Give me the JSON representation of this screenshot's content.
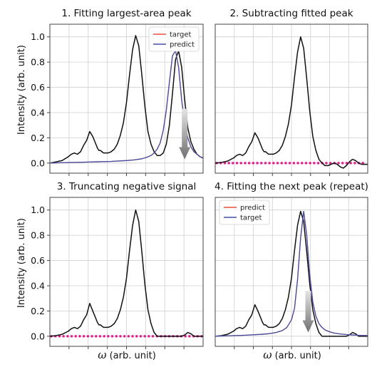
{
  "ylabel": "Intensity (arb. unit)",
  "xlabel_symbol": "ω",
  "xlabel_rest": " (arb. unit)",
  "colors": {
    "black_curve": "#111111",
    "red_line": "#e8503a",
    "blue_line": "#4050a8",
    "zero_dots": "#e0208a",
    "arrow_top": "#d9d9d9",
    "arrow_bottom": "#7a7a7a"
  },
  "chart_data": [
    {
      "type": "line",
      "title": "1. Fitting largest-area peak",
      "xlim": [
        0,
        100
      ],
      "ylim": [
        -0.08,
        1.1
      ],
      "yticks": [
        "0.0",
        "0.2",
        "0.4",
        "0.6",
        "0.8",
        "1.0"
      ],
      "xlabel": "",
      "ylabel": "Intensity (arb. unit)",
      "grid": true,
      "legend": {
        "position": "top-right",
        "entries": [
          "target",
          "predict"
        ]
      },
      "series": [
        {
          "name": "",
          "style": "black",
          "x": [
            0,
            4,
            8,
            12,
            14,
            16,
            18,
            20,
            22,
            24,
            26,
            28,
            30,
            31,
            32,
            33,
            34,
            35,
            36,
            38,
            40,
            42,
            44,
            46,
            48,
            50,
            52,
            54,
            56,
            58,
            60,
            62,
            64,
            66,
            68,
            70,
            72,
            74,
            76,
            78,
            80,
            82,
            84,
            86,
            88,
            90,
            92,
            94,
            96,
            98,
            100
          ],
          "y": [
            0.0,
            0.01,
            0.02,
            0.05,
            0.07,
            0.08,
            0.07,
            0.09,
            0.14,
            0.18,
            0.25,
            0.21,
            0.15,
            0.12,
            0.1,
            0.1,
            0.09,
            0.08,
            0.08,
            0.08,
            0.09,
            0.11,
            0.15,
            0.22,
            0.32,
            0.48,
            0.7,
            0.9,
            1.01,
            0.93,
            0.7,
            0.45,
            0.25,
            0.15,
            0.09,
            0.06,
            0.06,
            0.08,
            0.15,
            0.3,
            0.55,
            0.82,
            0.89,
            0.76,
            0.5,
            0.28,
            0.17,
            0.11,
            0.07,
            0.05,
            0.04
          ]
        },
        {
          "name": "target",
          "style": "red",
          "x": [
            0,
            10,
            20,
            30,
            40,
            50,
            55,
            60,
            63,
            66,
            68,
            70,
            72,
            74,
            76,
            78,
            80,
            82,
            84,
            86,
            88,
            90,
            92,
            94,
            96,
            98,
            100
          ],
          "y": [
            0.0,
            0.004,
            0.006,
            0.01,
            0.013,
            0.02,
            0.025,
            0.034,
            0.045,
            0.06,
            0.08,
            0.11,
            0.16,
            0.26,
            0.42,
            0.64,
            0.85,
            0.89,
            0.76,
            0.5,
            0.31,
            0.2,
            0.13,
            0.09,
            0.07,
            0.05,
            0.04
          ]
        },
        {
          "name": "predict",
          "style": "blue",
          "x": [
            0,
            10,
            20,
            30,
            40,
            50,
            55,
            60,
            63,
            66,
            68,
            70,
            72,
            74,
            76,
            78,
            80,
            82,
            84,
            86,
            88,
            90,
            92,
            94,
            96,
            98,
            100
          ],
          "y": [
            0.0,
            0.004,
            0.006,
            0.01,
            0.013,
            0.02,
            0.025,
            0.034,
            0.045,
            0.06,
            0.08,
            0.11,
            0.16,
            0.26,
            0.42,
            0.64,
            0.85,
            0.89,
            0.76,
            0.5,
            0.31,
            0.2,
            0.13,
            0.09,
            0.07,
            0.05,
            0.04
          ]
        }
      ],
      "arrow": {
        "x": 88,
        "y_from": 0.43,
        "y_to": 0.03
      },
      "zero_dotted": false
    },
    {
      "type": "line",
      "title": "2. Subtracting fitted peak",
      "xlim": [
        0,
        100
      ],
      "ylim": [
        -0.08,
        1.1
      ],
      "yticks": [],
      "xlabel": "",
      "ylabel": "",
      "grid": true,
      "legend": null,
      "series": [
        {
          "name": "",
          "style": "black",
          "x": [
            0,
            4,
            8,
            12,
            14,
            16,
            18,
            20,
            22,
            24,
            26,
            28,
            30,
            31,
            32,
            33,
            34,
            35,
            36,
            38,
            40,
            42,
            44,
            46,
            48,
            50,
            52,
            54,
            56,
            58,
            60,
            62,
            64,
            66,
            68,
            70,
            72,
            74,
            76,
            78,
            80,
            82,
            84,
            86,
            88,
            90,
            92,
            94,
            96,
            98,
            100
          ],
          "y": [
            0.0,
            0.005,
            0.015,
            0.04,
            0.06,
            0.07,
            0.06,
            0.08,
            0.13,
            0.17,
            0.24,
            0.2,
            0.14,
            0.11,
            0.09,
            0.09,
            0.08,
            0.07,
            0.07,
            0.07,
            0.08,
            0.1,
            0.14,
            0.21,
            0.31,
            0.46,
            0.68,
            0.88,
            1.0,
            0.91,
            0.67,
            0.41,
            0.21,
            0.1,
            0.03,
            0.0,
            -0.02,
            -0.02,
            -0.01,
            0.0,
            -0.01,
            -0.03,
            -0.04,
            -0.02,
            0.01,
            0.03,
            0.02,
            0.0,
            -0.01,
            -0.01,
            -0.01
          ]
        }
      ],
      "arrow": null,
      "zero_dotted": true
    },
    {
      "type": "line",
      "title": "3. Truncating negative signal",
      "xlim": [
        0,
        100
      ],
      "ylim": [
        -0.08,
        1.1
      ],
      "yticks": [
        "0.0",
        "0.2",
        "0.4",
        "0.6",
        "0.8",
        "1.0"
      ],
      "xlabel": "ω (arb. unit)",
      "ylabel": "Intensity (arb. unit)",
      "grid": true,
      "legend": null,
      "series": [
        {
          "name": "",
          "style": "black",
          "x": [
            0,
            4,
            8,
            12,
            14,
            16,
            18,
            20,
            22,
            24,
            26,
            28,
            30,
            31,
            32,
            33,
            34,
            35,
            36,
            38,
            40,
            42,
            44,
            46,
            48,
            50,
            52,
            54,
            56,
            58,
            60,
            62,
            64,
            66,
            68,
            70,
            72,
            74,
            76,
            78,
            80,
            82,
            84,
            86,
            88,
            90,
            92,
            94,
            96,
            98,
            100
          ],
          "y": [
            0.0,
            0.005,
            0.015,
            0.04,
            0.06,
            0.07,
            0.06,
            0.08,
            0.13,
            0.17,
            0.26,
            0.2,
            0.14,
            0.11,
            0.09,
            0.09,
            0.08,
            0.07,
            0.07,
            0.07,
            0.08,
            0.1,
            0.14,
            0.21,
            0.31,
            0.46,
            0.68,
            0.88,
            1.0,
            0.91,
            0.67,
            0.41,
            0.21,
            0.1,
            0.03,
            0.0,
            0.0,
            0.0,
            0.0,
            0.0,
            0.0,
            0.0,
            0.0,
            0.0,
            0.01,
            0.03,
            0.02,
            0.0,
            0.0,
            0.0,
            0.0
          ]
        }
      ],
      "arrow": null,
      "zero_dotted": true
    },
    {
      "type": "line",
      "title": "4. Fitting the next peak (repeat)",
      "xlim": [
        0,
        100
      ],
      "ylim": [
        -0.08,
        1.1
      ],
      "yticks": [],
      "xlabel": "ω (arb. unit)",
      "ylabel": "",
      "grid": true,
      "legend": {
        "position": "top-left",
        "entries": [
          "predict",
          "target"
        ]
      },
      "series": [
        {
          "name": "",
          "style": "black",
          "x": [
            0,
            4,
            8,
            12,
            14,
            16,
            18,
            20,
            22,
            24,
            26,
            28,
            30,
            31,
            32,
            33,
            34,
            35,
            36,
            38,
            40,
            42,
            44,
            46,
            48,
            50,
            52,
            54,
            56,
            58,
            60,
            62,
            64,
            66,
            68,
            70,
            72,
            74,
            76,
            78,
            80,
            82,
            84,
            86,
            88,
            90,
            92,
            94,
            96,
            98,
            100
          ],
          "y": [
            0.0,
            0.005,
            0.015,
            0.04,
            0.06,
            0.07,
            0.06,
            0.08,
            0.13,
            0.17,
            0.25,
            0.2,
            0.14,
            0.11,
            0.09,
            0.09,
            0.08,
            0.07,
            0.07,
            0.07,
            0.08,
            0.1,
            0.14,
            0.21,
            0.31,
            0.46,
            0.68,
            0.88,
            0.99,
            0.91,
            0.67,
            0.41,
            0.21,
            0.1,
            0.03,
            0.0,
            0.0,
            0.0,
            0.0,
            0.0,
            0.0,
            0.0,
            0.0,
            0.0,
            0.01,
            0.03,
            0.02,
            0.0,
            0.0,
            0.0,
            0.0
          ]
        },
        {
          "name": "predict",
          "style": "red",
          "x": [
            0,
            10,
            20,
            30,
            35,
            40,
            44,
            47,
            50,
            52,
            54,
            56,
            58,
            60,
            62,
            64,
            66,
            68,
            70,
            72,
            75,
            78,
            82,
            86,
            90,
            95,
            100
          ],
          "y": [
            0.0,
            0.004,
            0.008,
            0.015,
            0.02,
            0.03,
            0.045,
            0.07,
            0.13,
            0.22,
            0.45,
            0.78,
            0.99,
            0.8,
            0.48,
            0.27,
            0.16,
            0.1,
            0.07,
            0.05,
            0.035,
            0.025,
            0.018,
            0.013,
            0.01,
            0.007,
            0.005
          ]
        },
        {
          "name": "target",
          "style": "blue",
          "x": [
            0,
            10,
            20,
            30,
            35,
            40,
            44,
            47,
            50,
            52,
            54,
            56,
            58,
            60,
            62,
            64,
            66,
            68,
            70,
            72,
            75,
            78,
            82,
            86,
            90,
            95,
            100
          ],
          "y": [
            0.0,
            0.004,
            0.008,
            0.015,
            0.02,
            0.03,
            0.045,
            0.07,
            0.13,
            0.22,
            0.45,
            0.78,
            0.99,
            0.8,
            0.48,
            0.27,
            0.16,
            0.1,
            0.07,
            0.05,
            0.035,
            0.025,
            0.018,
            0.013,
            0.01,
            0.007,
            0.005
          ]
        }
      ],
      "arrow": {
        "x": 61,
        "y_from": 0.36,
        "y_to": 0.03
      },
      "zero_dotted": false
    }
  ]
}
